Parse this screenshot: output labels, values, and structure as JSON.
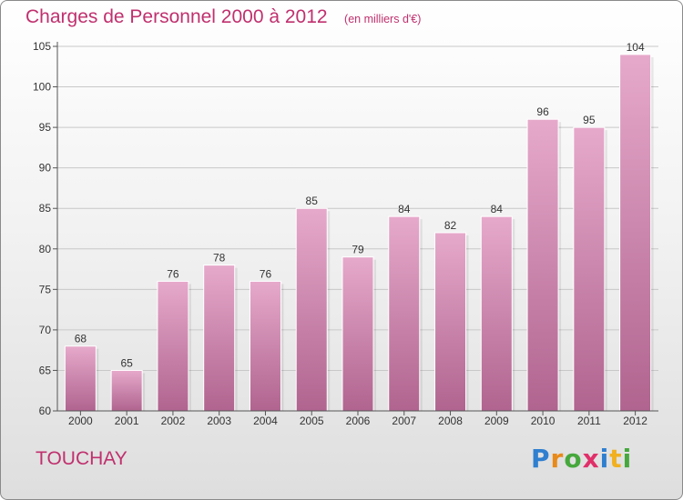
{
  "title": "Charges de Personnel 2000 à 2012",
  "subtitle": "(en milliers d'€)",
  "commune": "TOUCHAY",
  "brand": {
    "letters": [
      "P",
      "r",
      "o",
      "x",
      "i",
      "t",
      "i"
    ],
    "colors": [
      "#2f7fd0",
      "#e88a1a",
      "#46a83c",
      "#e0306a",
      "#2f7fd0",
      "#f0b020",
      "#46a83c"
    ]
  },
  "colors": {
    "bar": "#d884b0",
    "bar_light": "#e6a9cb",
    "bar_dark": "#b0648f",
    "axis": "#555555",
    "grid": "#c8c8c8",
    "text": "#333333"
  },
  "chart_data": {
    "type": "bar",
    "categories": [
      "2000",
      "2001",
      "2002",
      "2003",
      "2004",
      "2005",
      "2006",
      "2007",
      "2008",
      "2009",
      "2010",
      "2011",
      "2012"
    ],
    "values": [
      68,
      65,
      76,
      78,
      76,
      85,
      79,
      84,
      82,
      84,
      96,
      95,
      104
    ],
    "ylim": [
      60,
      105
    ],
    "yticks": [
      60,
      65,
      70,
      75,
      80,
      85,
      90,
      95,
      100,
      105
    ],
    "grid": true
  }
}
